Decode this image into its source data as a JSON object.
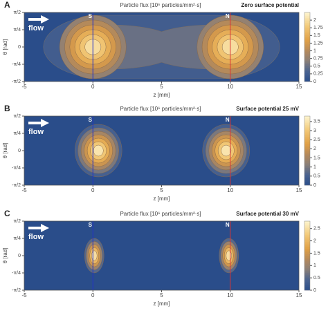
{
  "chart_data": [
    {
      "type": "contour",
      "panel": "A",
      "title": "Particle flux [10⁶ particles/mm²·s]",
      "subtitle": "Zero surface potential",
      "x_label": "z [mm]",
      "y_label": "θ [rad]",
      "arrow_label": "flow",
      "xlim": [
        -5,
        15
      ],
      "xticks": [
        -5,
        0,
        5,
        10,
        15
      ],
      "ylim": [
        -1.5708,
        1.5708
      ],
      "yticks": [
        {
          "value": 1.5708,
          "label": "π/2"
        },
        {
          "value": 0.7854,
          "label": "π/4"
        },
        0,
        {
          "value": -0.7854,
          "label": "-π/4"
        },
        {
          "value": -1.5708,
          "label": "-π/2"
        }
      ],
      "markers": [
        {
          "label": "S",
          "x": 0,
          "color": "#2233cc"
        },
        {
          "label": "N",
          "x": 10,
          "color": "#dd3333"
        }
      ],
      "colorbar_lim": [
        0,
        2.25
      ],
      "colorbar_ticks": [
        0,
        0.25,
        0.5,
        0.75,
        1.0,
        1.25,
        1.5,
        1.75,
        2.0
      ]
    },
    {
      "type": "contour",
      "panel": "B",
      "title": "Particle flux [10⁶ particles/mm²·s]",
      "subtitle": "Surface potential 25 mV",
      "x_label": "z [mm]",
      "y_label": "θ [rad]",
      "arrow_label": "flow",
      "xlim": [
        -5,
        15
      ],
      "xticks": [
        -5,
        0,
        5,
        10,
        15
      ],
      "ylim": [
        -1.5708,
        1.5708
      ],
      "yticks": [
        {
          "value": 1.5708,
          "label": "π/2"
        },
        {
          "value": 0.7854,
          "label": "π/4"
        },
        0,
        {
          "value": -0.7854,
          "label": "-π/4"
        },
        {
          "value": -1.5708,
          "label": "-π/2"
        }
      ],
      "markers": [
        {
          "label": "S",
          "x": 0,
          "color": "#2233cc"
        },
        {
          "label": "N",
          "x": 10,
          "color": "#dd3333"
        }
      ],
      "colorbar_lim": [
        0,
        3.8
      ],
      "colorbar_ticks": [
        0,
        0.5,
        1.0,
        1.5,
        2.0,
        2.5,
        3.0,
        3.5
      ]
    },
    {
      "type": "contour",
      "panel": "C",
      "title": "Particle flux [10⁶ particles/mm²·s]",
      "subtitle": "Surface potential 30 mV",
      "x_label": "z [mm]",
      "y_label": "θ [rad]",
      "arrow_label": "flow",
      "xlim": [
        -5,
        15
      ],
      "xticks": [
        -5,
        0,
        5,
        10,
        15
      ],
      "ylim": [
        -1.5708,
        1.5708
      ],
      "yticks": [
        {
          "value": 1.5708,
          "label": "π/2"
        },
        {
          "value": 0.7854,
          "label": "π/4"
        },
        0,
        {
          "value": -0.7854,
          "label": "-π/4"
        },
        {
          "value": -1.5708,
          "label": "-π/2"
        }
      ],
      "markers": [
        {
          "label": "S",
          "x": 0,
          "color": "#2233cc"
        },
        {
          "label": "N",
          "x": 10,
          "color": "#dd3333"
        }
      ],
      "colorbar_lim": [
        0,
        2.8
      ],
      "colorbar_ticks": [
        0,
        0.5,
        1.0,
        1.5,
        2.0,
        2.5
      ]
    }
  ]
}
